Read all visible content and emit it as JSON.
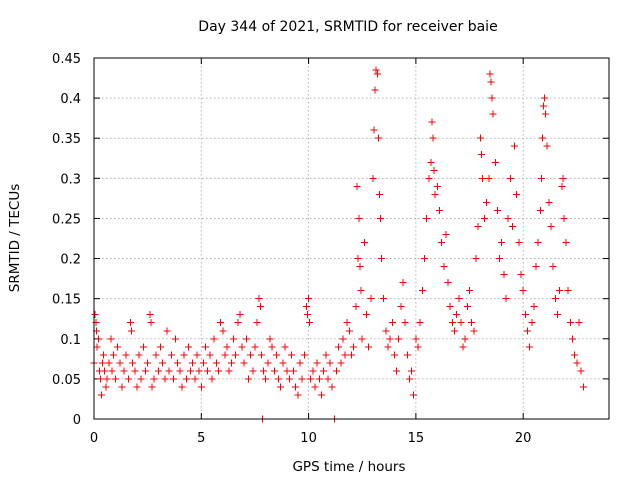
{
  "chart_data": {
    "type": "scatter",
    "title": "Day 344 of 2021, SRMTID for receiver baie",
    "xlabel": "GPS time / hours",
    "ylabel": "SRMTID / TECUs",
    "xlim": [
      0,
      24
    ],
    "ylim": [
      0,
      0.45
    ],
    "xticks": [
      0,
      5,
      10,
      15,
      20
    ],
    "xtick_labels": [
      "0",
      "5",
      "10",
      "15",
      "20"
    ],
    "yticks": [
      0,
      0.05,
      0.1,
      0.15,
      0.2,
      0.25,
      0.3,
      0.35,
      0.4,
      0.45
    ],
    "ytick_labels": [
      "0",
      "0.05",
      "0.1",
      "0.15",
      "0.2",
      "0.25",
      "0.3",
      "0.35",
      "0.4",
      "0.45"
    ],
    "grid": true,
    "marker": "+",
    "marker_color": "#ff0000",
    "series": [
      {
        "name": "SRMTID",
        "points": [
          [
            0.0,
            0.07
          ],
          [
            0.05,
            0.13
          ],
          [
            0.1,
            0.12
          ],
          [
            0.12,
            0.11
          ],
          [
            0.15,
            0.09
          ],
          [
            0.2,
            0.1
          ],
          [
            0.25,
            0.06
          ],
          [
            0.3,
            0.05
          ],
          [
            0.35,
            0.03
          ],
          [
            0.4,
            0.07
          ],
          [
            0.45,
            0.08
          ],
          [
            0.5,
            0.06
          ],
          [
            0.55,
            0.04
          ],
          [
            0.6,
            0.05
          ],
          [
            0.7,
            0.07
          ],
          [
            0.8,
            0.1
          ],
          [
            0.85,
            0.06
          ],
          [
            0.9,
            0.08
          ],
          [
            1.0,
            0.05
          ],
          [
            1.1,
            0.09
          ],
          [
            1.2,
            0.07
          ],
          [
            1.3,
            0.04
          ],
          [
            1.4,
            0.06
          ],
          [
            1.5,
            0.08
          ],
          [
            1.6,
            0.05
          ],
          [
            1.7,
            0.12
          ],
          [
            1.75,
            0.11
          ],
          [
            1.8,
            0.07
          ],
          [
            1.9,
            0.06
          ],
          [
            2.0,
            0.04
          ],
          [
            2.1,
            0.08
          ],
          [
            2.2,
            0.05
          ],
          [
            2.3,
            0.09
          ],
          [
            2.4,
            0.06
          ],
          [
            2.5,
            0.07
          ],
          [
            2.6,
            0.13
          ],
          [
            2.65,
            0.12
          ],
          [
            2.7,
            0.04
          ],
          [
            2.8,
            0.05
          ],
          [
            2.9,
            0.08
          ],
          [
            3.0,
            0.06
          ],
          [
            3.1,
            0.09
          ],
          [
            3.2,
            0.07
          ],
          [
            3.3,
            0.05
          ],
          [
            3.4,
            0.11
          ],
          [
            3.5,
            0.06
          ],
          [
            3.6,
            0.08
          ],
          [
            3.7,
            0.05
          ],
          [
            3.8,
            0.1
          ],
          [
            3.9,
            0.07
          ],
          [
            4.0,
            0.06
          ],
          [
            4.1,
            0.04
          ],
          [
            4.2,
            0.08
          ],
          [
            4.3,
            0.05
          ],
          [
            4.4,
            0.09
          ],
          [
            4.5,
            0.06
          ],
          [
            4.6,
            0.07
          ],
          [
            4.7,
            0.05
          ],
          [
            4.8,
            0.08
          ],
          [
            4.9,
            0.06
          ],
          [
            5.0,
            0.04
          ],
          [
            5.1,
            0.07
          ],
          [
            5.2,
            0.09
          ],
          [
            5.3,
            0.06
          ],
          [
            5.4,
            0.08
          ],
          [
            5.5,
            0.05
          ],
          [
            5.6,
            0.1
          ],
          [
            5.7,
            0.07
          ],
          [
            5.8,
            0.06
          ],
          [
            5.9,
            0.12
          ],
          [
            6.0,
            0.11
          ],
          [
            6.1,
            0.08
          ],
          [
            6.2,
            0.09
          ],
          [
            6.3,
            0.06
          ],
          [
            6.4,
            0.07
          ],
          [
            6.5,
            0.1
          ],
          [
            6.6,
            0.08
          ],
          [
            6.7,
            0.12
          ],
          [
            6.8,
            0.13
          ],
          [
            6.9,
            0.09
          ],
          [
            7.0,
            0.07
          ],
          [
            7.1,
            0.1
          ],
          [
            7.2,
            0.05
          ],
          [
            7.3,
            0.08
          ],
          [
            7.4,
            0.06
          ],
          [
            7.5,
            0.09
          ],
          [
            7.6,
            0.12
          ],
          [
            7.7,
            0.15
          ],
          [
            7.75,
            0.14
          ],
          [
            7.8,
            0.08
          ],
          [
            7.85,
            0.0
          ],
          [
            7.9,
            0.06
          ],
          [
            8.0,
            0.05
          ],
          [
            8.1,
            0.07
          ],
          [
            8.2,
            0.1
          ],
          [
            8.3,
            0.09
          ],
          [
            8.4,
            0.06
          ],
          [
            8.5,
            0.08
          ],
          [
            8.6,
            0.05
          ],
          [
            8.7,
            0.04
          ],
          [
            8.8,
            0.07
          ],
          [
            8.9,
            0.09
          ],
          [
            9.0,
            0.06
          ],
          [
            9.1,
            0.05
          ],
          [
            9.2,
            0.08
          ],
          [
            9.3,
            0.06
          ],
          [
            9.4,
            0.04
          ],
          [
            9.5,
            0.03
          ],
          [
            9.6,
            0.07
          ],
          [
            9.7,
            0.05
          ],
          [
            9.8,
            0.08
          ],
          [
            9.9,
            0.14
          ],
          [
            9.95,
            0.13
          ],
          [
            10.0,
            0.15
          ],
          [
            10.05,
            0.12
          ],
          [
            10.1,
            0.05
          ],
          [
            10.2,
            0.06
          ],
          [
            10.3,
            0.04
          ],
          [
            10.4,
            0.07
          ],
          [
            10.5,
            0.05
          ],
          [
            10.6,
            0.03
          ],
          [
            10.7,
            0.06
          ],
          [
            10.8,
            0.08
          ],
          [
            10.9,
            0.05
          ],
          [
            11.0,
            0.07
          ],
          [
            11.1,
            0.04
          ],
          [
            11.2,
            0.0
          ],
          [
            11.3,
            0.06
          ],
          [
            11.4,
            0.09
          ],
          [
            11.5,
            0.07
          ],
          [
            11.6,
            0.1
          ],
          [
            11.7,
            0.08
          ],
          [
            11.8,
            0.12
          ],
          [
            11.9,
            0.11
          ],
          [
            12.0,
            0.08
          ],
          [
            12.1,
            0.09
          ],
          [
            12.2,
            0.14
          ],
          [
            12.25,
            0.29
          ],
          [
            12.3,
            0.2
          ],
          [
            12.35,
            0.25
          ],
          [
            12.4,
            0.19
          ],
          [
            12.45,
            0.16
          ],
          [
            12.5,
            0.1
          ],
          [
            12.6,
            0.22
          ],
          [
            12.7,
            0.13
          ],
          [
            12.8,
            0.09
          ],
          [
            12.9,
            0.15
          ],
          [
            13.0,
            0.3
          ],
          [
            13.05,
            0.36
          ],
          [
            13.1,
            0.41
          ],
          [
            13.15,
            0.435
          ],
          [
            13.2,
            0.43
          ],
          [
            13.25,
            0.35
          ],
          [
            13.3,
            0.28
          ],
          [
            13.35,
            0.25
          ],
          [
            13.4,
            0.2
          ],
          [
            13.5,
            0.15
          ],
          [
            13.6,
            0.11
          ],
          [
            13.7,
            0.09
          ],
          [
            13.8,
            0.1
          ],
          [
            13.9,
            0.12
          ],
          [
            14.0,
            0.08
          ],
          [
            14.1,
            0.06
          ],
          [
            14.2,
            0.1
          ],
          [
            14.3,
            0.14
          ],
          [
            14.4,
            0.17
          ],
          [
            14.5,
            0.12
          ],
          [
            14.6,
            0.08
          ],
          [
            14.7,
            0.05
          ],
          [
            14.8,
            0.06
          ],
          [
            14.9,
            0.03
          ],
          [
            15.0,
            0.1
          ],
          [
            15.1,
            0.09
          ],
          [
            15.2,
            0.12
          ],
          [
            15.3,
            0.16
          ],
          [
            15.4,
            0.2
          ],
          [
            15.5,
            0.25
          ],
          [
            15.6,
            0.3
          ],
          [
            15.7,
            0.32
          ],
          [
            15.75,
            0.37
          ],
          [
            15.8,
            0.35
          ],
          [
            15.85,
            0.31
          ],
          [
            15.9,
            0.28
          ],
          [
            16.0,
            0.29
          ],
          [
            16.1,
            0.26
          ],
          [
            16.2,
            0.22
          ],
          [
            16.3,
            0.19
          ],
          [
            16.4,
            0.23
          ],
          [
            16.5,
            0.17
          ],
          [
            16.6,
            0.14
          ],
          [
            16.7,
            0.12
          ],
          [
            16.8,
            0.11
          ],
          [
            16.9,
            0.13
          ],
          [
            17.0,
            0.15
          ],
          [
            17.1,
            0.12
          ],
          [
            17.2,
            0.09
          ],
          [
            17.3,
            0.1
          ],
          [
            17.4,
            0.14
          ],
          [
            17.5,
            0.16
          ],
          [
            17.6,
            0.12
          ],
          [
            17.7,
            0.11
          ],
          [
            17.8,
            0.2
          ],
          [
            17.9,
            0.24
          ],
          [
            18.0,
            0.35
          ],
          [
            18.05,
            0.33
          ],
          [
            18.1,
            0.3
          ],
          [
            18.2,
            0.25
          ],
          [
            18.3,
            0.27
          ],
          [
            18.4,
            0.3
          ],
          [
            18.45,
            0.43
          ],
          [
            18.5,
            0.42
          ],
          [
            18.55,
            0.4
          ],
          [
            18.6,
            0.38
          ],
          [
            18.7,
            0.32
          ],
          [
            18.8,
            0.26
          ],
          [
            18.9,
            0.2
          ],
          [
            19.0,
            0.22
          ],
          [
            19.1,
            0.18
          ],
          [
            19.2,
            0.15
          ],
          [
            19.3,
            0.25
          ],
          [
            19.4,
            0.3
          ],
          [
            19.5,
            0.24
          ],
          [
            19.6,
            0.34
          ],
          [
            19.7,
            0.28
          ],
          [
            19.8,
            0.22
          ],
          [
            19.9,
            0.18
          ],
          [
            20.0,
            0.16
          ],
          [
            20.1,
            0.13
          ],
          [
            20.2,
            0.11
          ],
          [
            20.3,
            0.09
          ],
          [
            20.4,
            0.12
          ],
          [
            20.5,
            0.14
          ],
          [
            20.6,
            0.19
          ],
          [
            20.7,
            0.22
          ],
          [
            20.8,
            0.26
          ],
          [
            20.85,
            0.3
          ],
          [
            20.9,
            0.35
          ],
          [
            20.95,
            0.39
          ],
          [
            21.0,
            0.4
          ],
          [
            21.05,
            0.38
          ],
          [
            21.1,
            0.34
          ],
          [
            21.2,
            0.27
          ],
          [
            21.3,
            0.24
          ],
          [
            21.4,
            0.19
          ],
          [
            21.5,
            0.15
          ],
          [
            21.6,
            0.13
          ],
          [
            21.7,
            0.16
          ],
          [
            21.8,
            0.29
          ],
          [
            21.85,
            0.3
          ],
          [
            21.9,
            0.25
          ],
          [
            22.0,
            0.22
          ],
          [
            22.1,
            0.16
          ],
          [
            22.2,
            0.12
          ],
          [
            22.3,
            0.1
          ],
          [
            22.4,
            0.08
          ],
          [
            22.5,
            0.07
          ],
          [
            22.6,
            0.12
          ],
          [
            22.7,
            0.06
          ],
          [
            22.8,
            0.04
          ]
        ]
      }
    ]
  }
}
